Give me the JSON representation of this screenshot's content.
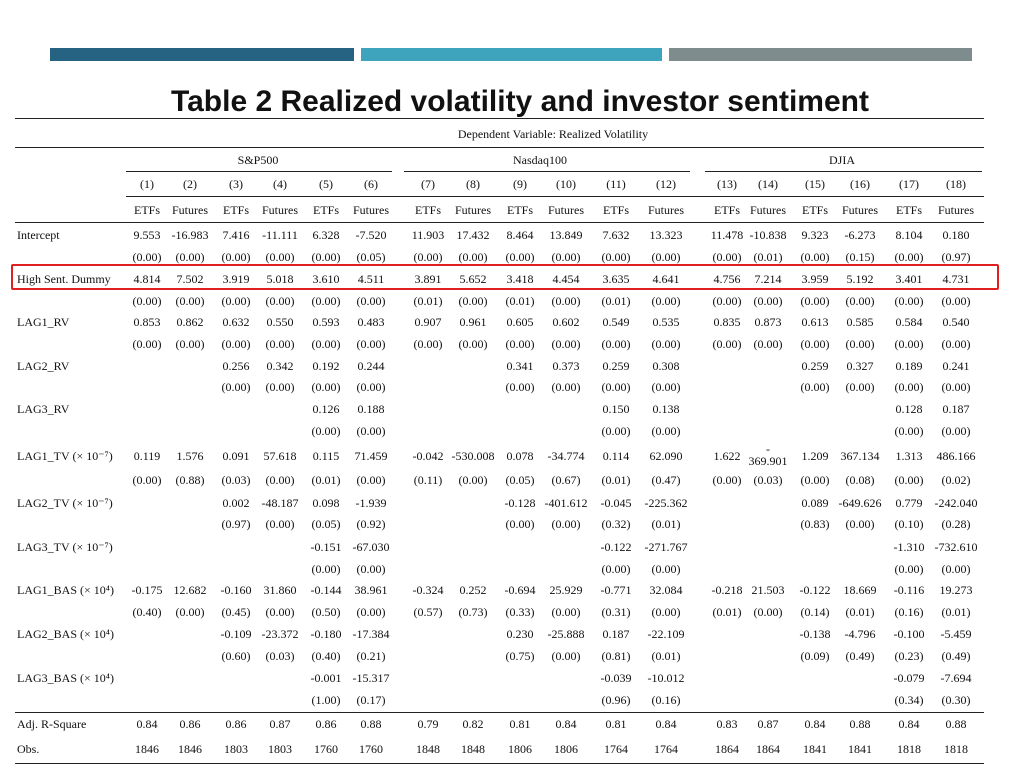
{
  "title": "Table 2 Realized volatility and investor sentiment",
  "dependent_variable": "Dependent Variable: Realized Volatility",
  "groups": [
    "S&P500",
    "Nasdaq100",
    "DJIA"
  ],
  "columns": [
    "(1)",
    "(2)",
    "(3)",
    "(4)",
    "(5)",
    "(6)",
    "(7)",
    "(8)",
    "(9)",
    "(10)",
    "(11)",
    "(12)",
    "(13)",
    "(14)",
    "(15)",
    "(16)",
    "(17)",
    "(18)"
  ],
  "types": [
    "ETFs",
    "Futures",
    "ETFs",
    "Futures",
    "ETFs",
    "Futures",
    "ETFs",
    "Futures",
    "ETFs",
    "Futures",
    "ETFs",
    "Futures",
    "ETFs",
    "Futures",
    "ETFs",
    "Futures",
    "ETFs",
    "Futures"
  ],
  "highlighted_row": "High Sent. Dummy",
  "rows": [
    {
      "label": "Intercept",
      "values": [
        "9.553",
        "-16.983",
        "7.416",
        "-11.111",
        "6.328",
        "-7.520",
        "11.903",
        "17.432",
        "8.464",
        "13.849",
        "7.632",
        "13.323",
        "11.478",
        "-10.838",
        "9.323",
        "-6.273",
        "8.104",
        "0.180"
      ]
    },
    {
      "label": "",
      "values": [
        "(0.00)",
        "(0.00)",
        "(0.00)",
        "(0.00)",
        "(0.00)",
        "(0.05)",
        "(0.00)",
        "(0.00)",
        "(0.00)",
        "(0.00)",
        "(0.00)",
        "(0.00)",
        "(0.00)",
        "(0.01)",
        "(0.00)",
        "(0.15)",
        "(0.00)",
        "(0.97)"
      ]
    },
    {
      "label": "High Sent. Dummy",
      "values": [
        "4.814",
        "7.502",
        "3.919",
        "5.018",
        "3.610",
        "4.511",
        "3.891",
        "5.652",
        "3.418",
        "4.454",
        "3.635",
        "4.641",
        "4.756",
        "7.214",
        "3.959",
        "5.192",
        "3.401",
        "4.731"
      ]
    },
    {
      "label": "",
      "values": [
        "(0.00)",
        "(0.00)",
        "(0.00)",
        "(0.00)",
        "(0.00)",
        "(0.00)",
        "(0.01)",
        "(0.00)",
        "(0.01)",
        "(0.00)",
        "(0.01)",
        "(0.00)",
        "(0.00)",
        "(0.00)",
        "(0.00)",
        "(0.00)",
        "(0.00)",
        "(0.00)"
      ]
    },
    {
      "label": "LAG1_RV",
      "values": [
        "0.853",
        "0.862",
        "0.632",
        "0.550",
        "0.593",
        "0.483",
        "0.907",
        "0.961",
        "0.605",
        "0.602",
        "0.549",
        "0.535",
        "0.835",
        "0.873",
        "0.613",
        "0.585",
        "0.584",
        "0.540"
      ]
    },
    {
      "label": "",
      "values": [
        "(0.00)",
        "(0.00)",
        "(0.00)",
        "(0.00)",
        "(0.00)",
        "(0.00)",
        "(0.00)",
        "(0.00)",
        "(0.00)",
        "(0.00)",
        "(0.00)",
        "(0.00)",
        "(0.00)",
        "(0.00)",
        "(0.00)",
        "(0.00)",
        "(0.00)",
        "(0.00)"
      ]
    },
    {
      "label": "LAG2_RV",
      "values": [
        "",
        "",
        "0.256",
        "0.342",
        "0.192",
        "0.244",
        "",
        "",
        "0.341",
        "0.373",
        "0.259",
        "0.308",
        "",
        "",
        "0.259",
        "0.327",
        "0.189",
        "0.241"
      ]
    },
    {
      "label": "",
      "values": [
        "",
        "",
        "(0.00)",
        "(0.00)",
        "(0.00)",
        "(0.00)",
        "",
        "",
        "(0.00)",
        "(0.00)",
        "(0.00)",
        "(0.00)",
        "",
        "",
        "(0.00)",
        "(0.00)",
        "(0.00)",
        "(0.00)"
      ]
    },
    {
      "label": "LAG3_RV",
      "values": [
        "",
        "",
        "",
        "",
        "0.126",
        "0.188",
        "",
        "",
        "",
        "",
        "0.150",
        "0.138",
        "",
        "",
        "",
        "",
        "0.128",
        "0.187"
      ]
    },
    {
      "label": "",
      "values": [
        "",
        "",
        "",
        "",
        "(0.00)",
        "(0.00)",
        "",
        "",
        "",
        "",
        "(0.00)",
        "(0.00)",
        "",
        "",
        "",
        "",
        "(0.00)",
        "(0.00)"
      ]
    },
    {
      "label": "LAG1_TV  (× 10⁻⁷)",
      "values": [
        "0.119",
        "1.576",
        "0.091",
        "57.618",
        "0.115",
        "71.459",
        "-0.042",
        "-530.008",
        "0.078",
        "-34.774",
        "0.114",
        "62.090",
        "1.622",
        "-\n369.901",
        "1.209",
        "367.134",
        "1.313",
        "486.166"
      ]
    },
    {
      "label": "",
      "values": [
        "(0.00)",
        "(0.88)",
        "(0.03)",
        "(0.00)",
        "(0.01)",
        "(0.00)",
        "(0.11)",
        "(0.00)",
        "(0.05)",
        "(0.67)",
        "(0.01)",
        "(0.47)",
        "(0.00)",
        "(0.03)",
        "(0.00)",
        "(0.08)",
        "(0.00)",
        "(0.02)"
      ]
    },
    {
      "label": "LAG2_TV  (× 10⁻⁷)",
      "values": [
        "",
        "",
        "0.002",
        "-48.187",
        "0.098",
        "-1.939",
        "",
        "",
        "-0.128",
        "-401.612",
        "-0.045",
        "-225.362",
        "",
        "",
        "0.089",
        "-649.626",
        "0.779",
        "-242.040"
      ]
    },
    {
      "label": "",
      "values": [
        "",
        "",
        "(0.97)",
        "(0.00)",
        "(0.05)",
        "(0.92)",
        "",
        "",
        "(0.00)",
        "(0.00)",
        "(0.32)",
        "(0.01)",
        "",
        "",
        "(0.83)",
        "(0.00)",
        "(0.10)",
        "(0.28)"
      ]
    },
    {
      "label": "LAG3_TV  (× 10⁻⁷)",
      "values": [
        "",
        "",
        "",
        "",
        "-0.151",
        "-67.030",
        "",
        "",
        "",
        "",
        "-0.122",
        "-271.767",
        "",
        "",
        "",
        "",
        "-1.310",
        "-732.610"
      ]
    },
    {
      "label": "",
      "values": [
        "",
        "",
        "",
        "",
        "(0.00)",
        "(0.00)",
        "",
        "",
        "",
        "",
        "(0.00)",
        "(0.00)",
        "",
        "",
        "",
        "",
        "(0.00)",
        "(0.00)"
      ]
    },
    {
      "label": "LAG1_BAS  (× 10⁴)",
      "values": [
        "-0.175",
        "12.682",
        "-0.160",
        "31.860",
        "-0.144",
        "38.961",
        "-0.324",
        "0.252",
        "-0.694",
        "25.929",
        "-0.771",
        "32.084",
        "-0.218",
        "21.503",
        "-0.122",
        "18.669",
        "-0.116",
        "19.273"
      ]
    },
    {
      "label": "",
      "values": [
        "(0.40)",
        "(0.00)",
        "(0.45)",
        "(0.00)",
        "(0.50)",
        "(0.00)",
        "(0.57)",
        "(0.73)",
        "(0.33)",
        "(0.00)",
        "(0.31)",
        "(0.00)",
        "(0.01)",
        "(0.00)",
        "(0.14)",
        "(0.01)",
        "(0.16)",
        "(0.01)"
      ]
    },
    {
      "label": "LAG2_BAS  (× 10⁴)",
      "values": [
        "",
        "",
        "-0.109",
        "-23.372",
        "-0.180",
        "-17.384",
        "",
        "",
        "0.230",
        "-25.888",
        "0.187",
        "-22.109",
        "",
        "",
        "-0.138",
        "-4.796",
        "-0.100",
        "-5.459"
      ]
    },
    {
      "label": "",
      "values": [
        "",
        "",
        "(0.60)",
        "(0.03)",
        "(0.40)",
        "(0.21)",
        "",
        "",
        "(0.75)",
        "(0.00)",
        "(0.81)",
        "(0.01)",
        "",
        "",
        "(0.09)",
        "(0.49)",
        "(0.23)",
        "(0.49)"
      ]
    },
    {
      "label": "LAG3_BAS  (× 10⁴)",
      "values": [
        "",
        "",
        "",
        "",
        "-0.001",
        "-15.317",
        "",
        "",
        "",
        "",
        "-0.039",
        "-10.012",
        "",
        "",
        "",
        "",
        "-0.079",
        "-7.694"
      ]
    },
    {
      "label": "",
      "values": [
        "",
        "",
        "",
        "",
        "(1.00)",
        "(0.17)",
        "",
        "",
        "",
        "",
        "(0.96)",
        "(0.16)",
        "",
        "",
        "",
        "",
        "(0.34)",
        "(0.30)"
      ]
    },
    {
      "label": "Adj. R-Square",
      "values": [
        "0.84",
        "0.86",
        "0.86",
        "0.87",
        "0.86",
        "0.88",
        "0.79",
        "0.82",
        "0.81",
        "0.84",
        "0.81",
        "0.84",
        "0.83",
        "0.87",
        "0.84",
        "0.88",
        "0.84",
        "0.88"
      ]
    },
    {
      "label": "Obs.",
      "values": [
        "1846",
        "1846",
        "1803",
        "1803",
        "1760",
        "1760",
        "1848",
        "1848",
        "1806",
        "1806",
        "1764",
        "1764",
        "1864",
        "1864",
        "1841",
        "1841",
        "1818",
        "1818"
      ]
    }
  ]
}
